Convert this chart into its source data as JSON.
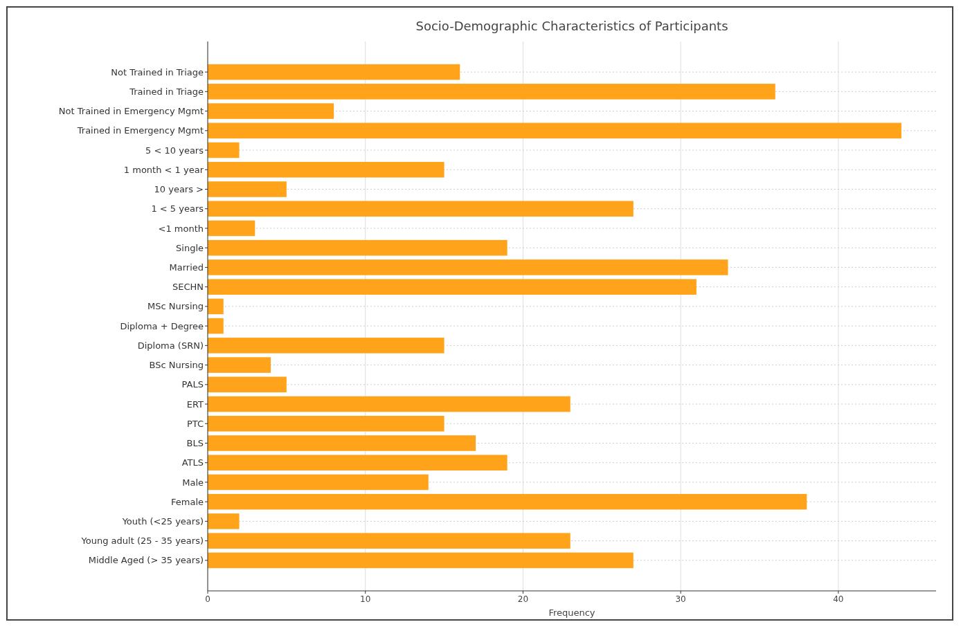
{
  "chart_data": {
    "type": "bar",
    "orientation": "horizontal",
    "title": "Socio-Demographic Characteristics of Participants",
    "xlabel": "Frequency",
    "categories": [
      "Not Trained in Triage",
      "Trained in Triage",
      "Not Trained in Emergency Mgmt",
      "Trained in Emergency Mgmt",
      "5 < 10 years",
      "1 month < 1 year",
      "10 years >",
      "1 < 5 years",
      "<1 month",
      "Single",
      "Married",
      "SECHN",
      "MSc Nursing",
      "Diploma + Degree",
      "Diploma (SRN)",
      "BSc Nursing",
      "PALS",
      "ERT",
      "PTC",
      "BLS",
      "ATLS",
      "Male",
      "Female",
      "Youth (<25 years)",
      "Young adult (25 - 35 years)",
      "Middle Aged (> 35 years)"
    ],
    "values": [
      16,
      36,
      8,
      44,
      2,
      15,
      5,
      27,
      3,
      19,
      33,
      31,
      1,
      1,
      15,
      4,
      5,
      23,
      15,
      17,
      19,
      14,
      38,
      2,
      23,
      27
    ],
    "color": "#ffa31a",
    "xlim": [
      0,
      46.2
    ],
    "xticks": [
      0,
      10,
      20,
      30,
      40
    ],
    "grid": true
  }
}
